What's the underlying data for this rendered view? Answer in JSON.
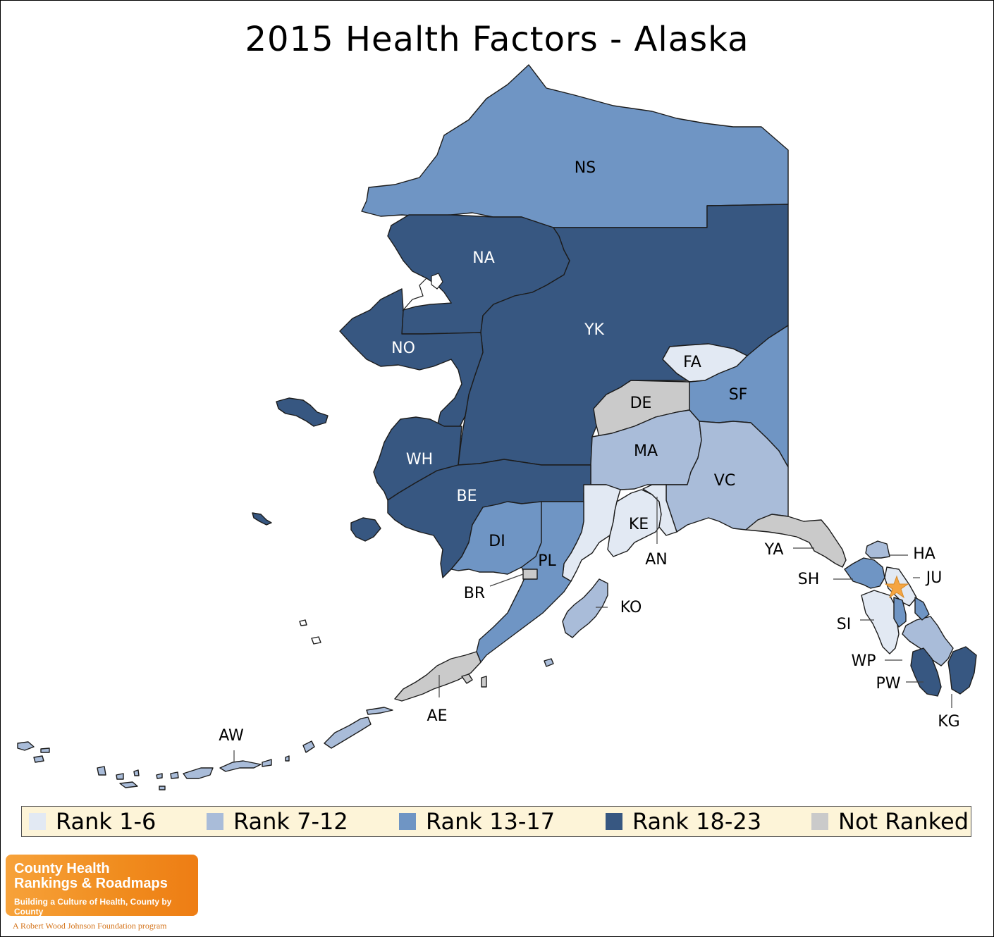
{
  "title": "2015 Health Factors - Alaska",
  "colors": {
    "rank_1_6": "#e2e9f3",
    "rank_7_12": "#a9bcd9",
    "rank_13_17": "#6f95c4",
    "rank_18_23": "#375781",
    "not_ranked": "#cacaca",
    "star": "#f5a542"
  },
  "legend": [
    {
      "label": "Rank 1-6",
      "color": "#e2e9f3"
    },
    {
      "label": "Rank 7-12",
      "color": "#a9bcd9"
    },
    {
      "label": "Rank 13-17",
      "color": "#6f95c4"
    },
    {
      "label": "Rank 18-23",
      "color": "#375781"
    },
    {
      "label": "Not Ranked",
      "color": "#cacaca"
    }
  ],
  "regions": [
    {
      "code": "NS",
      "category": "Rank 13-17"
    },
    {
      "code": "NA",
      "category": "Rank 18-23"
    },
    {
      "code": "YK",
      "category": "Rank 18-23"
    },
    {
      "code": "NO",
      "category": "Rank 18-23"
    },
    {
      "code": "FA",
      "category": "Rank 1-6"
    },
    {
      "code": "SF",
      "category": "Rank 13-17"
    },
    {
      "code": "DE",
      "category": "Not Ranked"
    },
    {
      "code": "MA",
      "category": "Rank 7-12"
    },
    {
      "code": "VC",
      "category": "Rank 7-12"
    },
    {
      "code": "WH",
      "category": "Rank 18-23"
    },
    {
      "code": "BE",
      "category": "Rank 18-23"
    },
    {
      "code": "KE",
      "category": "Rank 1-6"
    },
    {
      "code": "AN",
      "category": "Rank 1-6"
    },
    {
      "code": "DI",
      "category": "Rank 13-17"
    },
    {
      "code": "PL",
      "category": "Rank 13-17"
    },
    {
      "code": "BR",
      "category": "Not Ranked"
    },
    {
      "code": "KO",
      "category": "Rank 7-12"
    },
    {
      "code": "YA",
      "category": "Not Ranked"
    },
    {
      "code": "HA",
      "category": "Rank 7-12"
    },
    {
      "code": "JU",
      "category": "Rank 1-6"
    },
    {
      "code": "SH",
      "category": "Rank 13-17"
    },
    {
      "code": "SI",
      "category": "Rank 1-6"
    },
    {
      "code": "WP",
      "category": "Rank 7-12"
    },
    {
      "code": "PW",
      "category": "Rank 18-23"
    },
    {
      "code": "KG",
      "category": "Rank 18-23"
    },
    {
      "code": "AE",
      "category": "Not Ranked"
    },
    {
      "code": "AW",
      "category": "Rank 7-12"
    }
  ],
  "logo": {
    "line1": "County Health",
    "line2": "Rankings & Roadmaps",
    "tagline": "Building a Culture of Health, County by County",
    "sponsor": "A Robert Wood Johnson Foundation program"
  }
}
